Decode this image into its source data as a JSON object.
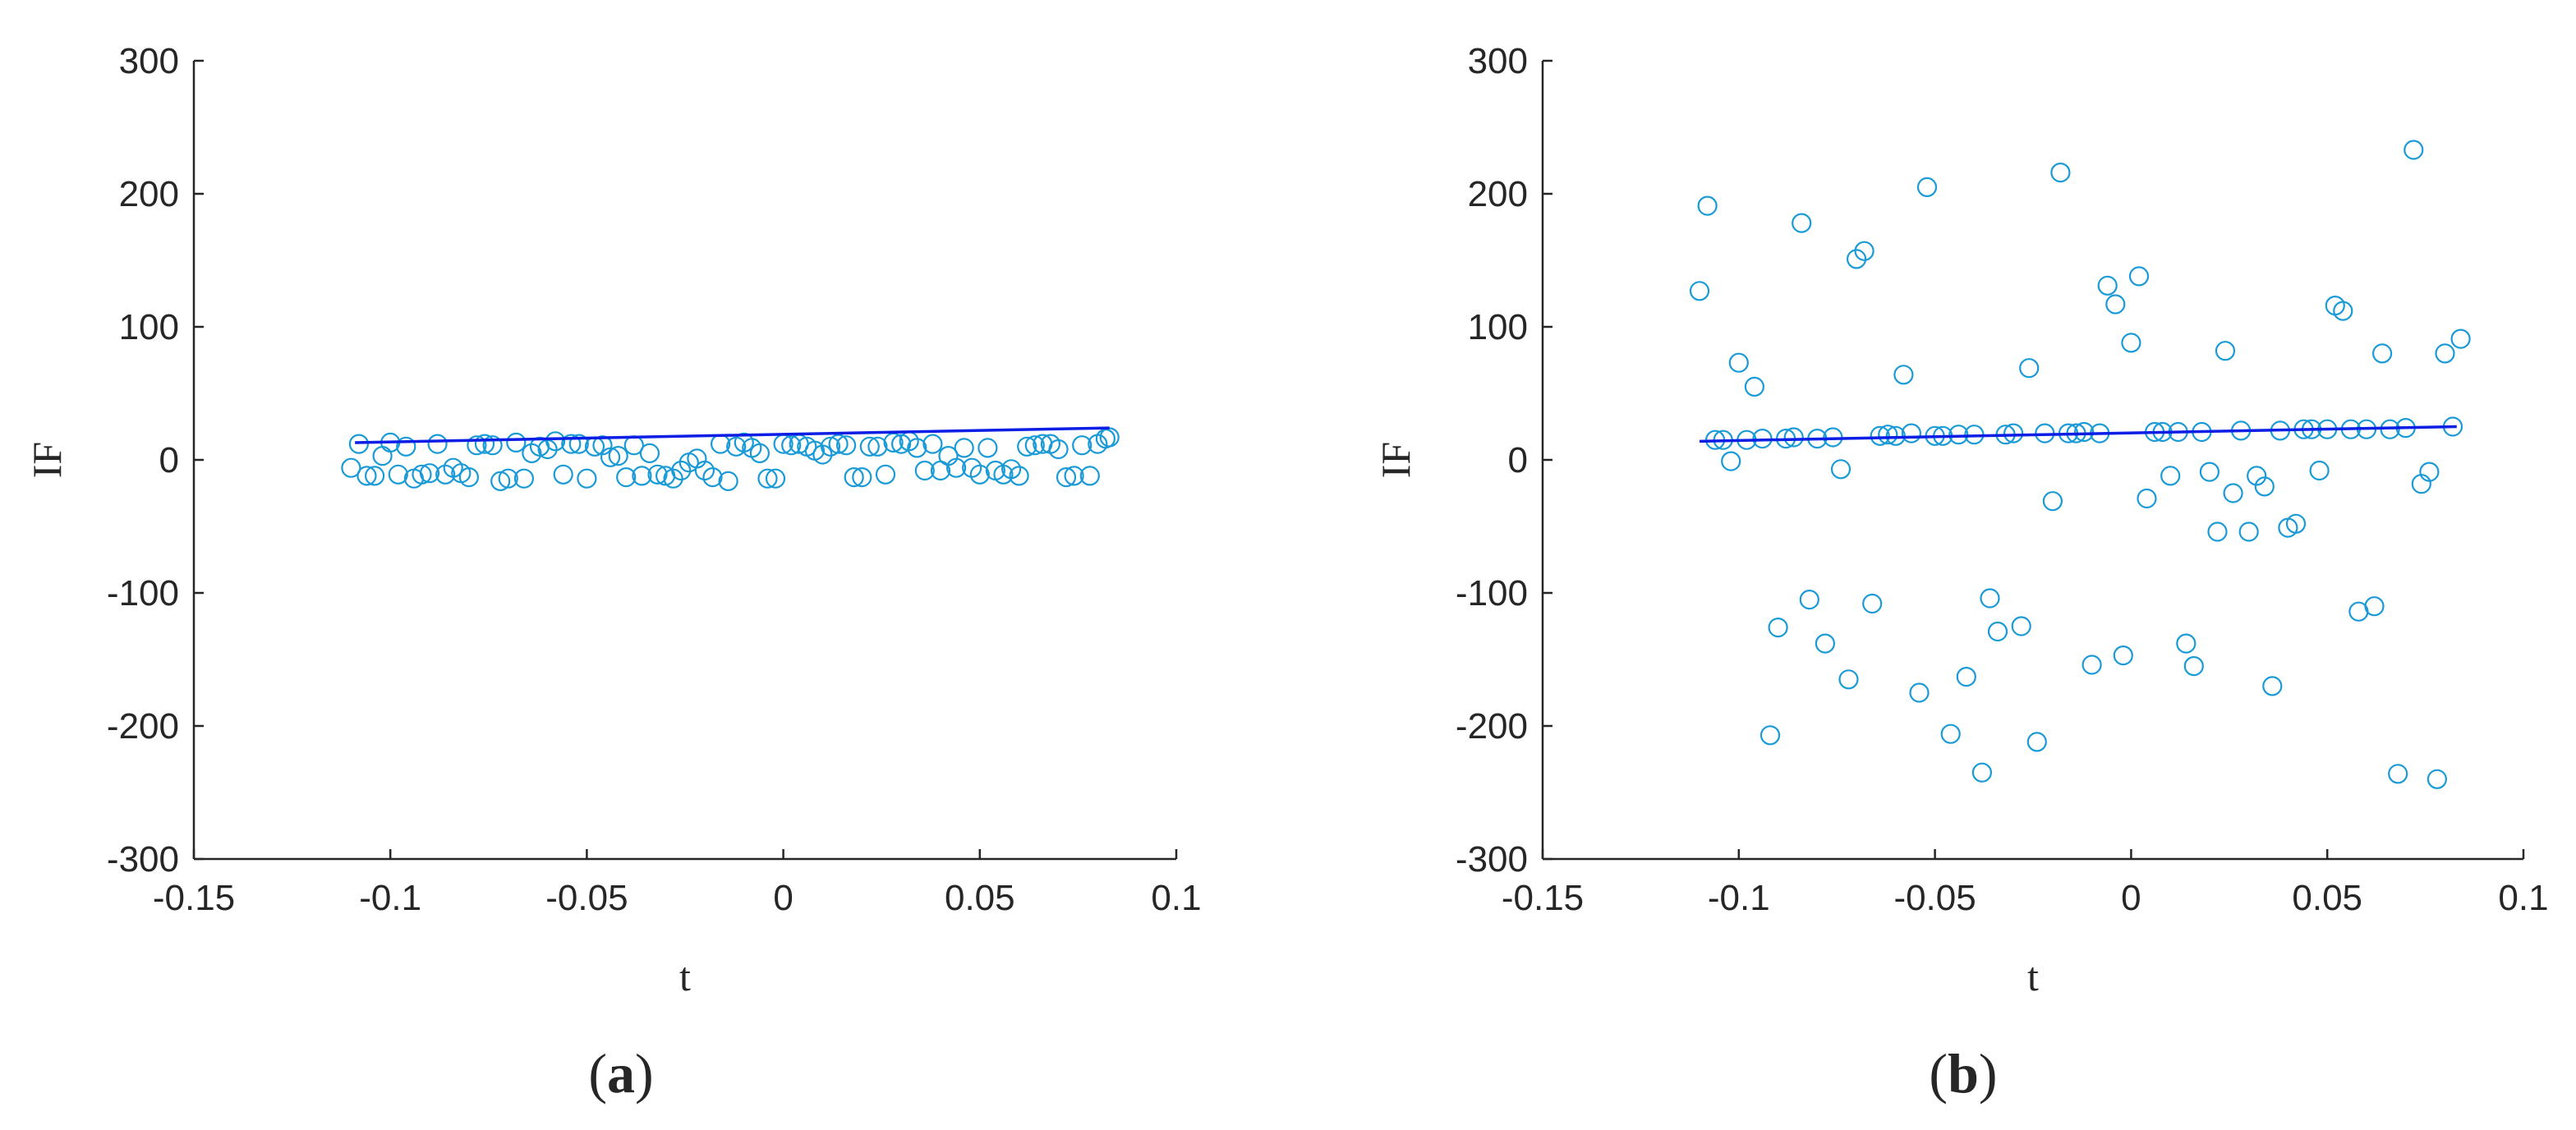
{
  "chart_data": [
    {
      "type": "scatter",
      "panel_label": {
        "open": "(",
        "letter": "a",
        "close": ")"
      },
      "xlabel": "t",
      "ylabel": "IF",
      "xlim": [
        -0.15,
        0.1
      ],
      "ylim": [
        -300,
        300
      ],
      "xticks": [
        "-0.15",
        "-0.1",
        "-0.05",
        "0",
        "0.05",
        "0.1"
      ],
      "yticks": [
        "300",
        "200",
        "100",
        "0",
        "-100",
        "-200",
        "-300"
      ],
      "marker_color": "#1a9ad6",
      "line_color": "#0a1ee6",
      "fit_line": {
        "x": [
          -0.109,
          0.083
        ],
        "y": [
          13,
          24
        ]
      },
      "points": {
        "x": [
          -0.11,
          -0.108,
          -0.106,
          -0.104,
          -0.102,
          -0.1,
          -0.098,
          -0.096,
          -0.094,
          -0.092,
          -0.09,
          -0.088,
          -0.086,
          -0.084,
          -0.082,
          -0.08,
          -0.078,
          -0.076,
          -0.074,
          -0.072,
          -0.07,
          -0.068,
          -0.066,
          -0.064,
          -0.062,
          -0.06,
          -0.058,
          -0.056,
          -0.054,
          -0.052,
          -0.05,
          -0.048,
          -0.046,
          -0.044,
          -0.042,
          -0.04,
          -0.038,
          -0.036,
          -0.034,
          -0.032,
          -0.03,
          -0.028,
          -0.026,
          -0.024,
          -0.022,
          -0.02,
          -0.018,
          -0.016,
          -0.014,
          -0.012,
          -0.01,
          -0.008,
          -0.006,
          -0.004,
          -0.002,
          0.0,
          0.002,
          0.004,
          0.006,
          0.008,
          0.01,
          0.012,
          0.014,
          0.016,
          0.018,
          0.02,
          0.022,
          0.024,
          0.026,
          0.028,
          0.03,
          0.032,
          0.034,
          0.036,
          0.038,
          0.04,
          0.042,
          0.044,
          0.046,
          0.048,
          0.05,
          0.052,
          0.054,
          0.056,
          0.058,
          0.06,
          0.062,
          0.064,
          0.066,
          0.068,
          0.07,
          0.072,
          0.074,
          0.076,
          0.078,
          0.08,
          0.082,
          0.083
        ],
        "y": [
          -6,
          12,
          -12,
          -12,
          3,
          13,
          -11,
          10,
          -14,
          -11,
          -10,
          12,
          -11,
          -6,
          -10,
          -13,
          11,
          12,
          11,
          -16,
          -14,
          13,
          -14,
          5,
          10,
          8,
          14,
          -11,
          12,
          12,
          -14,
          10,
          11,
          2,
          3,
          -13,
          11,
          -12,
          5,
          -11,
          -12,
          -14,
          -8,
          -2,
          1,
          -8,
          -13,
          12,
          -16,
          10,
          13,
          9,
          5,
          -14,
          -14,
          12,
          11,
          12,
          10,
          7,
          4,
          10,
          12,
          11,
          -13,
          -13,
          10,
          10,
          -11,
          13,
          12,
          14,
          9,
          -8,
          12,
          -8,
          3,
          -6,
          9,
          -6,
          -11,
          9,
          -8,
          -11,
          -7,
          -12,
          10,
          11,
          12,
          12,
          8,
          -13,
          -12,
          11,
          -12,
          12,
          16,
          17
        ]
      }
    },
    {
      "type": "scatter",
      "panel_label": {
        "open": "(",
        "letter": "b",
        "close": ")"
      },
      "xlabel": "t",
      "ylabel": "IF",
      "xlim": [
        -0.15,
        0.1
      ],
      "ylim": [
        -300,
        300
      ],
      "xticks": [
        "-0.15",
        "-0.1",
        "-0.05",
        "0",
        "0.05",
        "0.1"
      ],
      "yticks": [
        "300",
        "200",
        "100",
        "0",
        "-100",
        "-200",
        "-300"
      ],
      "marker_color": "#1a9ad6",
      "line_color": "#0a1ee6",
      "fit_line": {
        "x": [
          -0.11,
          0.083
        ],
        "y": [
          14,
          25
        ]
      },
      "points": {
        "x": [
          -0.11,
          -0.108,
          -0.106,
          -0.104,
          -0.102,
          -0.1,
          -0.098,
          -0.096,
          -0.094,
          -0.092,
          -0.09,
          -0.088,
          -0.086,
          -0.084,
          -0.082,
          -0.08,
          -0.078,
          -0.076,
          -0.074,
          -0.072,
          -0.07,
          -0.068,
          -0.066,
          -0.064,
          -0.062,
          -0.06,
          -0.058,
          -0.056,
          -0.054,
          -0.052,
          -0.05,
          -0.048,
          -0.046,
          -0.044,
          -0.042,
          -0.04,
          -0.038,
          -0.036,
          -0.034,
          -0.032,
          -0.03,
          -0.028,
          -0.026,
          -0.024,
          -0.022,
          -0.02,
          -0.018,
          -0.016,
          -0.014,
          -0.012,
          -0.01,
          -0.008,
          -0.006,
          -0.004,
          -0.002,
          0.0,
          0.002,
          0.004,
          0.006,
          0.008,
          0.01,
          0.012,
          0.014,
          0.016,
          0.018,
          0.02,
          0.022,
          0.024,
          0.026,
          0.028,
          0.03,
          0.032,
          0.034,
          0.036,
          0.038,
          0.04,
          0.042,
          0.044,
          0.046,
          0.048,
          0.05,
          0.052,
          0.054,
          0.056,
          0.058,
          0.06,
          0.062,
          0.064,
          0.066,
          0.068,
          0.07,
          0.072,
          0.074,
          0.076,
          0.078,
          0.08,
          0.082,
          0.084
        ],
        "y": [
          127,
          191,
          15,
          15,
          -1,
          73,
          15,
          55,
          16,
          -207,
          -126,
          16,
          17,
          178,
          -105,
          16,
          -138,
          17,
          -7,
          -165,
          151,
          157,
          -108,
          18,
          19,
          18,
          64,
          20,
          -175,
          205,
          18,
          18,
          -206,
          19,
          -163,
          19,
          -235,
          -104,
          -129,
          19,
          20,
          -125,
          69,
          -212,
          20,
          -31,
          216,
          20,
          20,
          21,
          -154,
          20,
          131,
          117,
          -147,
          88,
          138,
          -29,
          21,
          21,
          -12,
          21,
          -138,
          -155,
          21,
          -9,
          -54,
          82,
          -25,
          22,
          -54,
          -12,
          -20,
          -170,
          22,
          -51,
          -48,
          23,
          23,
          -8,
          23,
          116,
          112,
          23,
          -114,
          23,
          -110,
          80,
          23,
          -236,
          24,
          233,
          -18,
          -9,
          -240,
          80,
          25,
          91
        ]
      }
    }
  ]
}
